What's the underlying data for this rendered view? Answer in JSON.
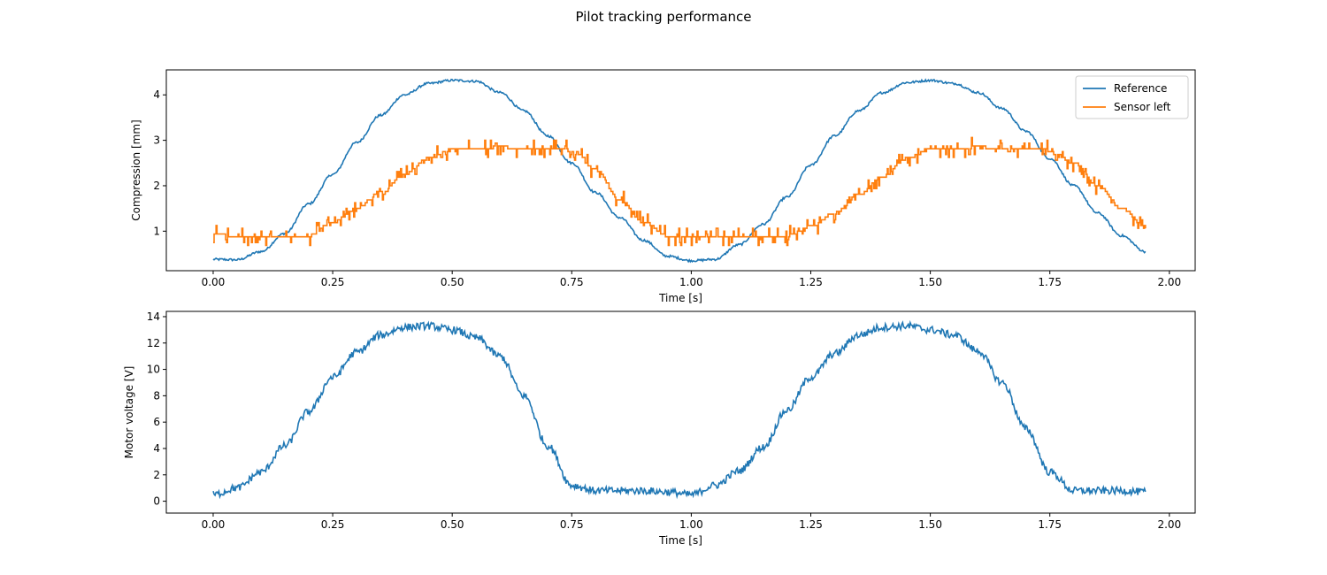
{
  "figure": {
    "title": "Pilot tracking performance"
  },
  "chart_data": [
    {
      "type": "line",
      "xlabel": "Time [s]",
      "ylabel": "Compression [mm]",
      "xlim": [
        -0.098,
        2.054
      ],
      "ylim": [
        0.13,
        4.55
      ],
      "xticks": [
        0.0,
        0.25,
        0.5,
        0.75,
        1.0,
        1.25,
        1.5,
        1.75,
        2.0
      ],
      "xtick_labels": [
        "0.00",
        "0.25",
        "0.50",
        "0.75",
        "1.00",
        "1.25",
        "1.50",
        "1.75",
        "2.00"
      ],
      "yticks": [
        1,
        2,
        3,
        4
      ],
      "ytick_labels": [
        "1",
        "2",
        "3",
        "4"
      ],
      "grid": false,
      "legend_position": "top-right",
      "x": [
        0.0,
        0.05,
        0.1,
        0.15,
        0.2,
        0.25,
        0.3,
        0.35,
        0.4,
        0.45,
        0.5,
        0.55,
        0.6,
        0.65,
        0.7,
        0.75,
        0.8,
        0.85,
        0.9,
        0.95,
        1.0,
        1.05,
        1.1,
        1.15,
        1.2,
        1.25,
        1.3,
        1.35,
        1.4,
        1.45,
        1.5,
        1.55,
        1.6,
        1.65,
        1.7,
        1.75,
        1.8,
        1.85,
        1.9,
        1.95
      ],
      "series": [
        {
          "name": "Reference",
          "color": "#1f77b4",
          "values": [
            0.38,
            0.37,
            0.55,
            0.95,
            1.6,
            2.25,
            2.95,
            3.55,
            4.0,
            4.25,
            4.32,
            4.3,
            4.05,
            3.65,
            3.1,
            2.5,
            1.85,
            1.3,
            0.8,
            0.45,
            0.35,
            0.38,
            0.7,
            1.15,
            1.75,
            2.45,
            3.1,
            3.65,
            4.05,
            4.27,
            4.32,
            4.25,
            4.05,
            3.7,
            3.2,
            2.6,
            2.0,
            1.4,
            0.9,
            0.55
          ]
        },
        {
          "name": "Sensor left",
          "color": "#ff7f0e",
          "values": [
            0.95,
            0.87,
            0.87,
            0.87,
            0.9,
            1.2,
            1.5,
            1.85,
            2.25,
            2.6,
            2.8,
            2.82,
            2.85,
            2.82,
            2.8,
            2.78,
            2.35,
            1.7,
            1.2,
            0.9,
            0.87,
            0.87,
            0.88,
            0.88,
            0.9,
            1.1,
            1.4,
            1.8,
            2.2,
            2.6,
            2.8,
            2.82,
            2.85,
            2.82,
            2.82,
            2.78,
            2.5,
            2.0,
            1.5,
            1.1
          ]
        }
      ]
    },
    {
      "type": "line",
      "xlabel": "Time [s]",
      "ylabel": "Motor voltage [V]",
      "xlim": [
        -0.098,
        2.054
      ],
      "ylim": [
        -0.9,
        14.4
      ],
      "xticks": [
        0.0,
        0.25,
        0.5,
        0.75,
        1.0,
        1.25,
        1.5,
        1.75,
        2.0
      ],
      "xtick_labels": [
        "0.00",
        "0.25",
        "0.50",
        "0.75",
        "1.00",
        "1.25",
        "1.50",
        "1.75",
        "2.00"
      ],
      "yticks": [
        0,
        2,
        4,
        6,
        8,
        10,
        12,
        14
      ],
      "ytick_labels": [
        "0",
        "2",
        "4",
        "6",
        "8",
        "10",
        "12",
        "14"
      ],
      "grid": false,
      "x": [
        0.0,
        0.05,
        0.1,
        0.15,
        0.2,
        0.25,
        0.3,
        0.35,
        0.4,
        0.45,
        0.5,
        0.55,
        0.6,
        0.65,
        0.7,
        0.75,
        0.8,
        0.85,
        0.9,
        0.95,
        1.0,
        1.05,
        1.1,
        1.15,
        1.2,
        1.25,
        1.3,
        1.35,
        1.4,
        1.45,
        1.5,
        1.55,
        1.6,
        1.65,
        1.7,
        1.75,
        1.8,
        1.85,
        1.9,
        1.95
      ],
      "series": [
        {
          "color": "#1f77b4",
          "values": [
            0.5,
            1.0,
            2.2,
            4.2,
            6.8,
            9.4,
            11.3,
            12.6,
            13.2,
            13.3,
            13.0,
            12.4,
            11.0,
            8.0,
            4.2,
            1.2,
            0.8,
            0.8,
            0.8,
            0.7,
            0.5,
            1.2,
            2.3,
            4.1,
            6.9,
            9.4,
            11.2,
            12.6,
            13.2,
            13.3,
            13.0,
            12.6,
            11.4,
            9.0,
            5.5,
            2.2,
            0.8,
            0.8,
            0.8,
            0.7
          ]
        }
      ]
    }
  ]
}
